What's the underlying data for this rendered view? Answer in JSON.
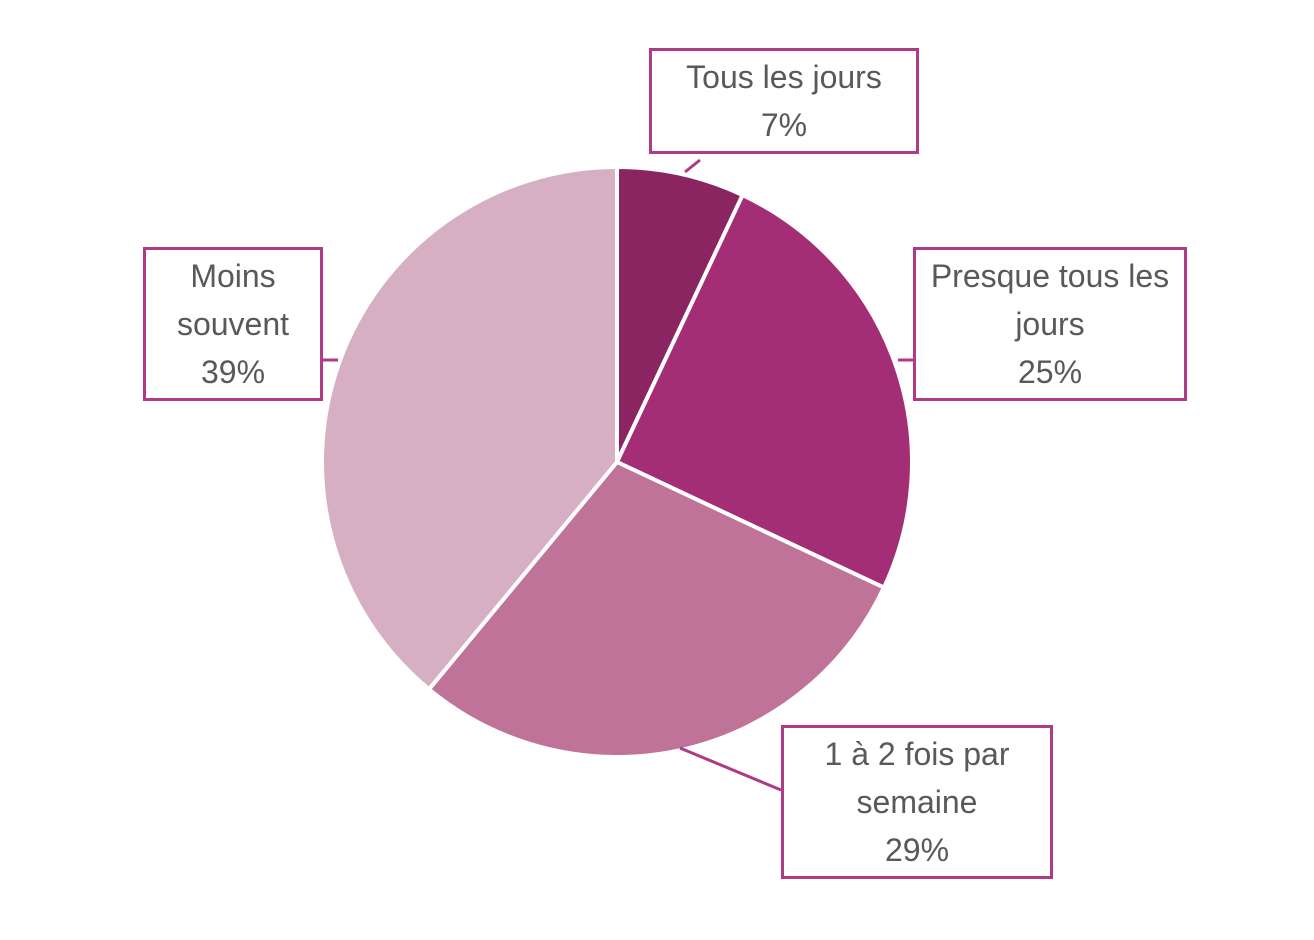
{
  "chart_data": {
    "type": "pie",
    "categories": [
      "Tous les jours",
      "Presque tous les jours",
      "1 à 2 fois par semaine",
      "Moins souvent"
    ],
    "values": [
      7,
      25,
      29,
      39
    ],
    "value_labels": [
      "7%",
      "25%",
      "29%",
      "39%"
    ],
    "colors": [
      "#8b2561",
      "#a32e76",
      "#bf7399",
      "#d7afc3"
    ],
    "label_border_color": "#b03a85"
  }
}
